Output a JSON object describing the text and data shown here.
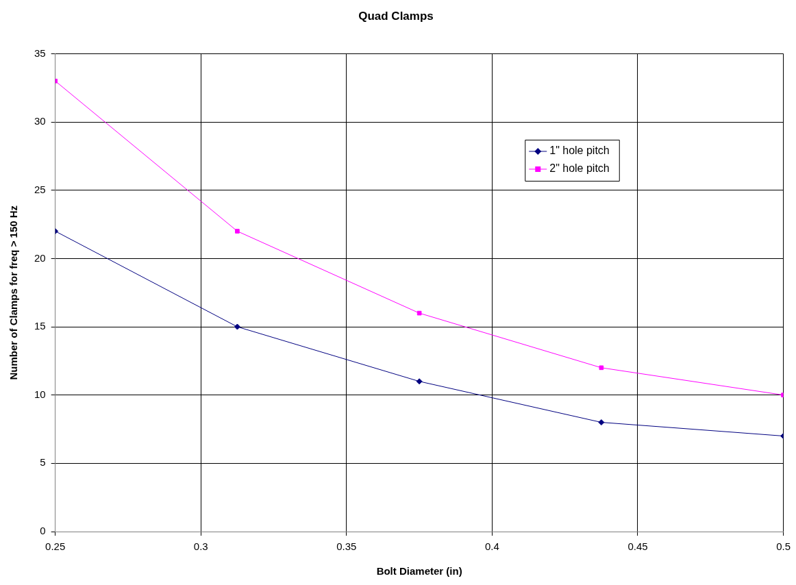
{
  "chart_data": {
    "type": "line",
    "title": "Quad Clamps",
    "xlabel": "Bolt Diameter (in)",
    "ylabel": "Number of Clamps for freq > 150 Hz",
    "x": [
      0.25,
      0.3125,
      0.375,
      0.4375,
      0.5
    ],
    "series": [
      {
        "name": "1\" hole pitch",
        "color": "#000080",
        "marker": "diamond",
        "values": [
          22,
          15,
          11,
          8,
          7
        ]
      },
      {
        "name": "2\" hole pitch",
        "color": "#ff00ff",
        "marker": "square",
        "values": [
          33,
          22,
          16,
          12,
          10
        ]
      }
    ],
    "xlim": [
      0.25,
      0.5
    ],
    "xticks": [
      0.25,
      0.3,
      0.35,
      0.4,
      0.45,
      0.5
    ],
    "ylim": [
      0,
      35
    ],
    "yticks": [
      0,
      5,
      10,
      15,
      20,
      25,
      30,
      35
    ],
    "grid": true,
    "legend": "right",
    "line_style": "solid"
  }
}
